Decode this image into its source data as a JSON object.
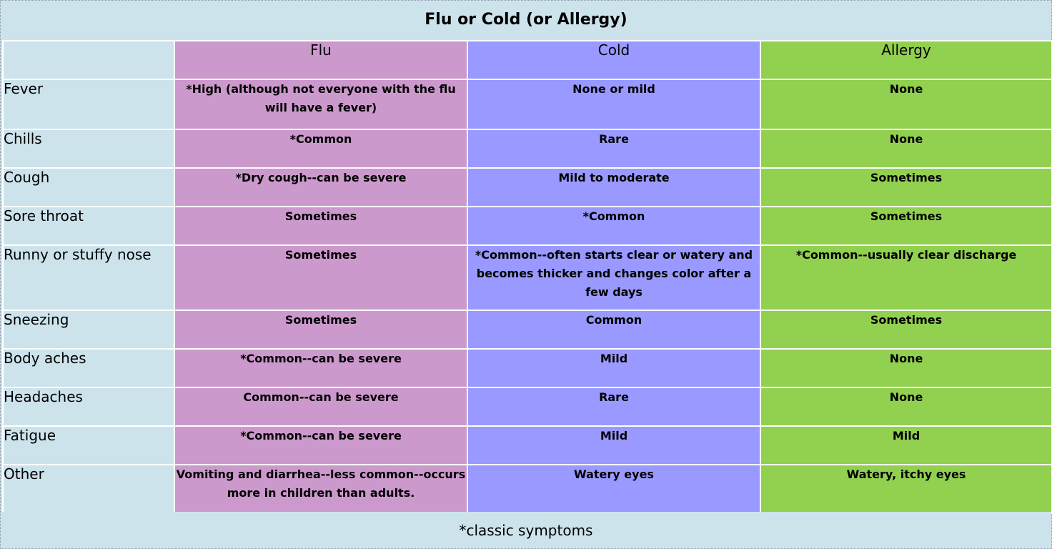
{
  "title": "Flu or Cold (or Allergy)",
  "columns": [
    "Flu",
    "Cold",
    "Allergy"
  ],
  "rows": [
    {
      "symptom": "Fever",
      "flu": "*High (although not everyone with the flu will have a fever)",
      "cold": "None or mild",
      "allergy": "None"
    },
    {
      "symptom": "Chills",
      "flu": "*Common",
      "cold": "Rare",
      "allergy": "None"
    },
    {
      "symptom": "Cough",
      "flu": "*Dry cough--can be severe",
      "cold": "Mild to moderate",
      "allergy": "Sometimes"
    },
    {
      "symptom": "Sore throat",
      "flu": "Sometimes",
      "cold": "*Common",
      "allergy": "Sometimes"
    },
    {
      "symptom": "Runny or stuffy nose",
      "flu": "Sometimes",
      "cold": "*Common--often starts clear or watery and becomes thicker and changes color after a few days",
      "allergy": "*Common--usually clear discharge"
    },
    {
      "symptom": "Sneezing",
      "flu": "Sometimes",
      "cold": "Common",
      "allergy": "Sometimes"
    },
    {
      "symptom": "Body aches",
      "flu": "*Common--can be severe",
      "cold": "Mild",
      "allergy": "None"
    },
    {
      "symptom": "Headaches",
      "flu": "Common--can be severe",
      "cold": "Rare",
      "allergy": "None"
    },
    {
      "symptom": "Fatigue",
      "flu": "*Common--can be severe",
      "cold": "Mild",
      "allergy": "Mild"
    },
    {
      "symptom": "Other",
      "flu": "Vomiting and diarrhea--less common--occurs more in children than adults.",
      "cold": "Watery eyes",
      "allergy": "Watery, itchy eyes"
    }
  ],
  "footnote": "*classic symptoms",
  "colors": {
    "flu": "#cc99cc",
    "cold": "#9999ff",
    "allergy": "#92d050",
    "background": "#cde3ec"
  }
}
